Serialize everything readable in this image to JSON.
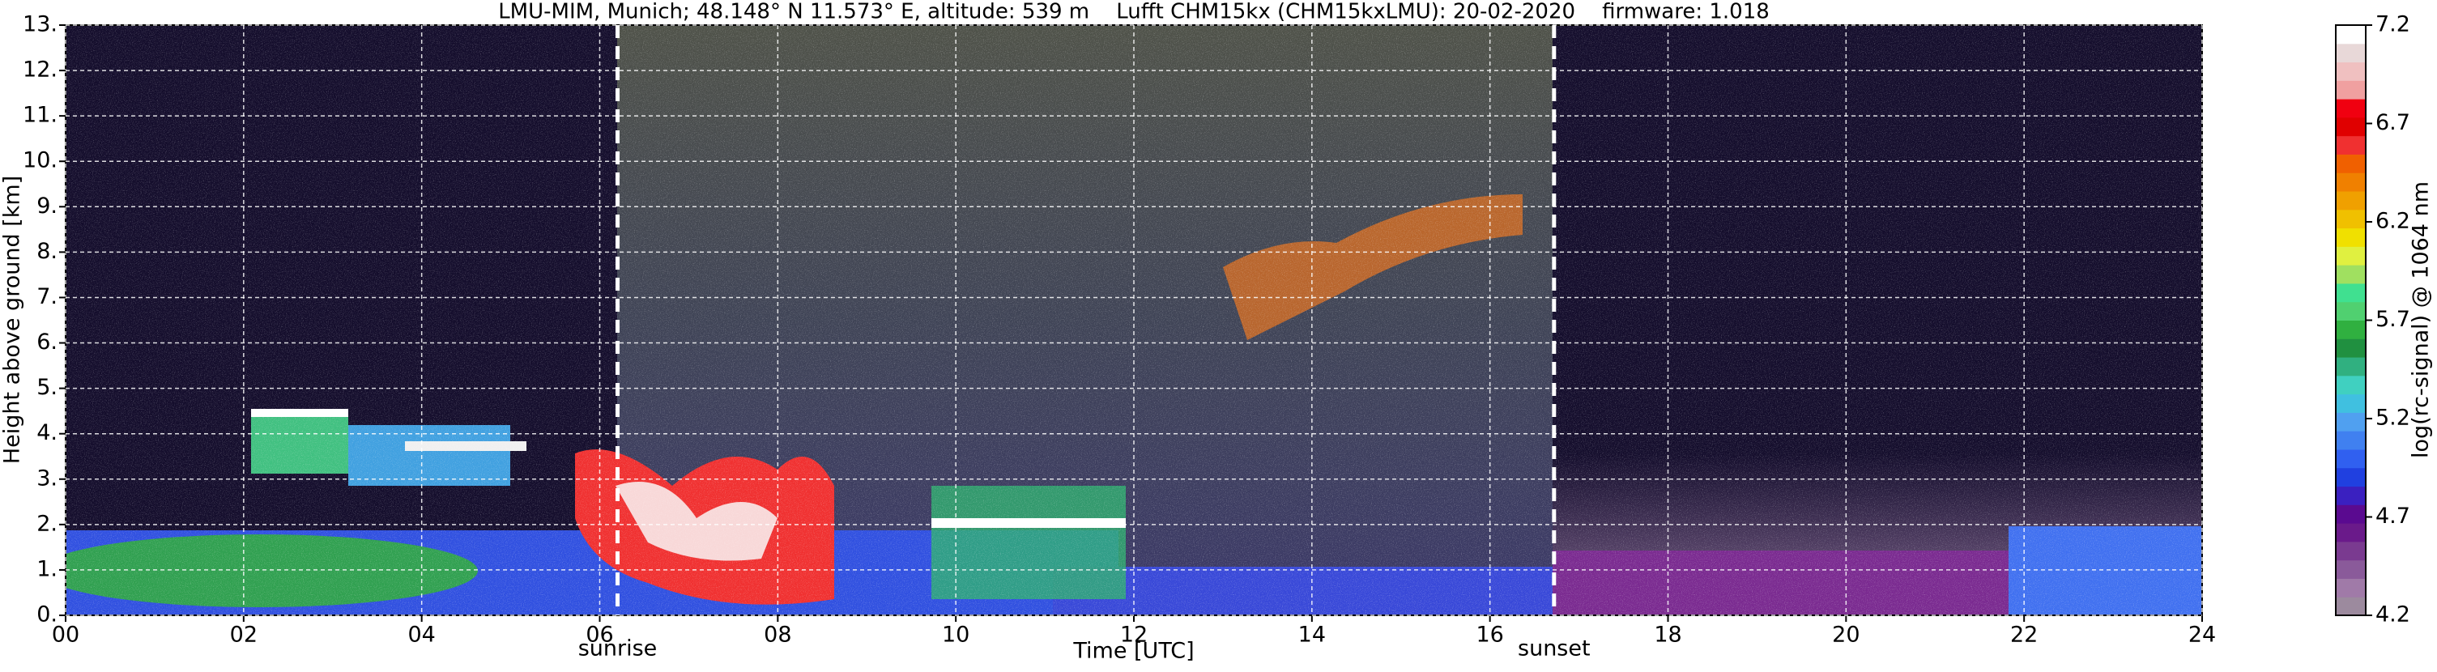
{
  "chart_data": {
    "type": "heatmap",
    "title": "LMU-MIM, Munich; 48.148° N 11.573° E, altitude: 539 m    Lufft CHM15kx (CHM15kxLMU): 20-02-2020    firmware: 1.018",
    "xlabel": "Time [UTC]",
    "ylabel": "Height above ground [km]",
    "colorbar_label": "log(rc-signal) @ 1064 nm",
    "xlim": [
      0,
      24
    ],
    "xticks": [
      {
        "value": 0,
        "label": "00"
      },
      {
        "value": 2,
        "label": "02"
      },
      {
        "value": 4,
        "label": "04"
      },
      {
        "value": 6,
        "label": "06"
      },
      {
        "value": 8,
        "label": "08"
      },
      10,
      12,
      14,
      16,
      18,
      20,
      22,
      24
    ],
    "ylim": [
      0,
      13
    ],
    "yticks": [
      {
        "value": 0,
        "label": "0."
      },
      {
        "value": 1,
        "label": "1."
      },
      {
        "value": 2,
        "label": "2."
      },
      {
        "value": 3,
        "label": "3."
      },
      {
        "value": 4,
        "label": "4."
      },
      {
        "value": 5,
        "label": "5."
      },
      {
        "value": 6,
        "label": "6."
      },
      {
        "value": 7,
        "label": "7."
      },
      {
        "value": 8,
        "label": "8."
      },
      {
        "value": 9,
        "label": "9."
      },
      {
        "value": 10,
        "label": "10."
      },
      {
        "value": 11,
        "label": "11."
      },
      {
        "value": 12,
        "label": "12."
      },
      {
        "value": 13,
        "label": "13."
      }
    ],
    "clim": [
      4.2,
      7.2
    ],
    "cticks": [
      4.2,
      4.7,
      5.2,
      5.7,
      6.2,
      6.7,
      7.2
    ],
    "colormap": [
      "#9c8a9e",
      "#a07aa8",
      "#8a5a9a",
      "#7a3a90",
      "#6a1a8a",
      "#5a0a90",
      "#3a20c0",
      "#2040e0",
      "#3060f0",
      "#4080f0",
      "#50a0f0",
      "#40c0e0",
      "#40d0c0",
      "#30b080",
      "#209040",
      "#30b040",
      "#50d070",
      "#40e090",
      "#a0e060",
      "#e0f040",
      "#f0e000",
      "#f0c000",
      "#f0a000",
      "#f08000",
      "#f06000",
      "#f03030",
      "#e00000",
      "#f00010",
      "#f0a0a0",
      "#f0c0c0",
      "#e8d8d8",
      "#ffffff"
    ],
    "grid": true,
    "events": [
      {
        "x": 6.2,
        "label": "sunrise"
      },
      {
        "x": 16.72,
        "label": "sunset"
      }
    ]
  }
}
